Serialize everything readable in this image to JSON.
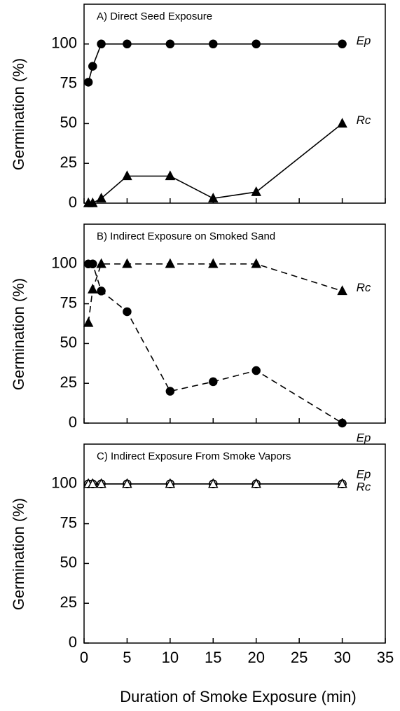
{
  "chart_data": [
    {
      "type": "line",
      "title": "A) Direct Seed Exposure",
      "ylabel": "Germination (%)",
      "x": [
        0.5,
        1,
        2,
        5,
        10,
        15,
        20,
        30
      ],
      "series": [
        {
          "name": "Ep",
          "color": "#000000",
          "marker": "circle",
          "filled": true,
          "line_style": "solid",
          "values": [
            76,
            86,
            100,
            100,
            100,
            100,
            100,
            100
          ]
        },
        {
          "name": "Rc",
          "color": "#000000",
          "marker": "triangle",
          "filled": true,
          "line_style": "solid",
          "values": [
            0,
            0,
            3,
            17,
            17,
            3,
            7,
            50
          ]
        }
      ],
      "xlim": [
        0,
        35
      ],
      "xticks": [
        0,
        5,
        10,
        15,
        20,
        25,
        30,
        35
      ],
      "ylim": [
        0,
        125
      ],
      "yticks": [
        0,
        25,
        50,
        75,
        100
      ]
    },
    {
      "type": "line",
      "title": "B) Indirect Exposure on Smoked Sand",
      "ylabel": "Germination (%)",
      "x": [
        0.5,
        1,
        2,
        5,
        10,
        15,
        20,
        30
      ],
      "series": [
        {
          "name": "Ep",
          "color": "#000000",
          "marker": "circle",
          "filled": true,
          "line_style": "dashed",
          "values": [
            100,
            100,
            83,
            70,
            20,
            26,
            33,
            0
          ]
        },
        {
          "name": "Rc",
          "color": "#000000",
          "marker": "triangle",
          "filled": true,
          "line_style": "dashed",
          "values": [
            63,
            84,
            100,
            100,
            100,
            100,
            100,
            83
          ]
        }
      ],
      "xlim": [
        0,
        35
      ],
      "xticks": [
        0,
        5,
        10,
        15,
        20,
        25,
        30,
        35
      ],
      "ylim": [
        0,
        125
      ],
      "yticks": [
        0,
        25,
        50,
        75,
        100
      ]
    },
    {
      "type": "line",
      "title": "C) Indirect Exposure From Smoke Vapors",
      "ylabel": "Germination (%)",
      "xlabel": "Duration of Smoke Exposure (min)",
      "x": [
        0.5,
        1,
        2,
        5,
        10,
        15,
        20,
        30
      ],
      "series": [
        {
          "name": "Ep",
          "color": "#000000",
          "marker": "circle",
          "filled": false,
          "line_style": "solid",
          "values": [
            100,
            100,
            100,
            100,
            100,
            100,
            100,
            100
          ]
        },
        {
          "name": "Rc",
          "color": "#000000",
          "marker": "triangle",
          "filled": false,
          "line_style": "solid",
          "values": [
            100,
            100,
            100,
            100,
            100,
            100,
            100,
            100
          ]
        }
      ],
      "xlim": [
        0,
        35
      ],
      "xticks": [
        0,
        5,
        10,
        15,
        20,
        25,
        30,
        35
      ],
      "ylim": [
        0,
        125
      ],
      "yticks": [
        0,
        25,
        50,
        75,
        100
      ]
    }
  ]
}
